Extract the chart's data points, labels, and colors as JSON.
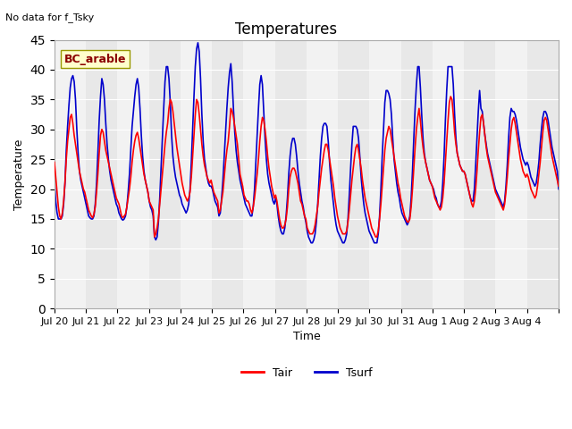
{
  "title": "Temperatures",
  "xlabel": "Time",
  "ylabel": "Temperature",
  "no_data_text": "No data for f_Tsky",
  "site_label": "BC_arable",
  "ylim": [
    0,
    45
  ],
  "yticks": [
    0,
    5,
    10,
    15,
    20,
    25,
    30,
    35,
    40,
    45
  ],
  "x_labels": [
    "Jul 20",
    "Jul 21",
    "Jul 22",
    "Jul 23",
    "Jul 24",
    "Jul 25",
    "Jul 26",
    "Jul 27",
    "Jul 28",
    "Jul 29",
    "Jul 30",
    "Jul 31",
    "Aug 1",
    "Aug 2",
    "Aug 3",
    "Aug 4"
  ],
  "bg_color": "#e8e8e8",
  "tair_color": "#ff0000",
  "tsurf_color": "#0000cc",
  "legend_labels": [
    "Tair",
    "Tsurf"
  ],
  "Tair": [
    24.5,
    22.0,
    19.5,
    17.0,
    15.5,
    15.0,
    16.0,
    18.0,
    21.0,
    25.0,
    28.0,
    30.0,
    32.0,
    32.5,
    31.0,
    29.0,
    27.5,
    26.0,
    24.5,
    23.0,
    22.0,
    21.0,
    20.0,
    19.5,
    18.5,
    17.5,
    16.5,
    16.0,
    15.5,
    15.2,
    15.8,
    17.0,
    19.5,
    22.5,
    26.0,
    29.0,
    30.0,
    29.5,
    28.0,
    26.5,
    25.5,
    24.5,
    23.5,
    22.5,
    21.5,
    20.5,
    19.5,
    18.5,
    18.0,
    17.5,
    16.5,
    15.5,
    15.2,
    15.5,
    15.8,
    17.0,
    18.5,
    20.0,
    22.0,
    24.5,
    26.5,
    28.0,
    29.0,
    29.5,
    28.5,
    27.0,
    25.5,
    24.0,
    22.5,
    21.5,
    20.5,
    19.5,
    18.0,
    17.5,
    17.0,
    16.5,
    12.0,
    12.5,
    13.5,
    15.0,
    17.5,
    20.0,
    22.5,
    25.0,
    27.5,
    29.5,
    31.0,
    33.5,
    35.0,
    34.5,
    33.0,
    31.0,
    29.0,
    27.0,
    25.5,
    24.0,
    22.5,
    21.0,
    20.0,
    19.0,
    18.5,
    18.0,
    18.5,
    19.5,
    22.0,
    25.5,
    29.0,
    32.5,
    35.0,
    34.5,
    32.5,
    30.0,
    27.5,
    25.5,
    24.0,
    23.0,
    22.0,
    21.5,
    21.0,
    21.5,
    20.5,
    19.5,
    19.0,
    18.5,
    18.0,
    16.0,
    16.5,
    18.0,
    19.5,
    22.0,
    24.5,
    26.5,
    28.0,
    30.5,
    33.5,
    33.0,
    32.0,
    30.5,
    29.0,
    27.5,
    25.0,
    22.5,
    21.5,
    20.5,
    19.0,
    18.5,
    18.0,
    18.0,
    17.5,
    16.5,
    16.0,
    17.0,
    18.5,
    20.5,
    22.5,
    25.0,
    28.0,
    30.5,
    32.0,
    31.5,
    30.0,
    28.0,
    25.5,
    23.5,
    22.0,
    20.5,
    19.5,
    18.5,
    19.0,
    18.0,
    16.5,
    15.0,
    14.0,
    13.5,
    13.5,
    14.0,
    15.0,
    17.0,
    20.0,
    22.0,
    23.0,
    23.5,
    23.5,
    23.0,
    22.0,
    21.0,
    19.5,
    18.0,
    17.5,
    16.5,
    15.5,
    15.0,
    13.5,
    13.0,
    12.5,
    12.5,
    12.5,
    13.0,
    14.0,
    15.5,
    17.0,
    19.5,
    21.5,
    23.5,
    25.0,
    26.5,
    27.5,
    27.5,
    26.5,
    25.0,
    23.5,
    22.0,
    20.5,
    18.5,
    17.0,
    15.5,
    14.5,
    13.5,
    13.0,
    12.5,
    12.5,
    12.5,
    13.0,
    14.5,
    16.5,
    19.0,
    21.5,
    23.5,
    25.5,
    27.0,
    27.5,
    26.5,
    25.0,
    23.5,
    21.5,
    20.0,
    18.5,
    17.5,
    16.5,
    15.5,
    14.5,
    13.5,
    13.0,
    12.5,
    12.0,
    12.0,
    13.0,
    15.0,
    17.5,
    20.5,
    23.5,
    26.5,
    28.5,
    29.5,
    30.5,
    30.0,
    28.5,
    27.0,
    25.5,
    24.0,
    22.5,
    21.0,
    20.0,
    18.5,
    17.5,
    16.5,
    15.5,
    15.0,
    14.5,
    14.5,
    15.0,
    17.0,
    20.0,
    23.5,
    27.0,
    30.0,
    32.0,
    33.5,
    31.5,
    29.0,
    27.0,
    25.5,
    24.5,
    23.5,
    22.5,
    21.5,
    21.0,
    20.5,
    19.5,
    18.5,
    18.0,
    17.5,
    17.0,
    16.5,
    17.0,
    18.5,
    21.0,
    24.5,
    28.0,
    31.5,
    34.5,
    35.5,
    35.0,
    32.5,
    29.5,
    27.5,
    26.0,
    25.0,
    24.0,
    23.5,
    23.0,
    23.0,
    22.5,
    21.5,
    20.5,
    19.5,
    18.5,
    17.5,
    17.0,
    18.0,
    20.0,
    23.0,
    26.5,
    29.5,
    32.0,
    32.5,
    31.0,
    29.0,
    27.0,
    25.5,
    24.5,
    23.5,
    22.5,
    21.5,
    20.5,
    19.5,
    19.0,
    18.5,
    18.0,
    17.5,
    17.0,
    16.5,
    17.5,
    19.5,
    22.0,
    25.0,
    27.5,
    30.0,
    31.5,
    32.0,
    31.0,
    29.5,
    28.0,
    26.5,
    25.0,
    24.0,
    23.0,
    22.5,
    22.0,
    22.5,
    22.0,
    21.0,
    20.0,
    19.5,
    19.0,
    18.5,
    19.0,
    20.5,
    22.5,
    24.5,
    27.0,
    29.5,
    31.5,
    32.0,
    31.5,
    30.0,
    28.5,
    27.0,
    25.5,
    24.5,
    23.5,
    22.5,
    21.5,
    20.5
  ],
  "Tsurf": [
    21.5,
    18.0,
    16.0,
    15.0,
    15.0,
    15.0,
    15.5,
    17.5,
    21.0,
    26.5,
    30.5,
    34.0,
    37.0,
    38.5,
    39.0,
    38.0,
    35.0,
    30.0,
    26.0,
    23.0,
    21.5,
    20.5,
    19.5,
    18.5,
    17.5,
    16.5,
    15.5,
    15.2,
    15.0,
    15.0,
    15.5,
    17.5,
    21.0,
    26.0,
    31.5,
    35.5,
    38.5,
    37.5,
    35.0,
    31.0,
    27.5,
    25.0,
    23.0,
    21.5,
    20.5,
    19.5,
    18.5,
    17.5,
    17.0,
    16.0,
    15.5,
    15.0,
    14.8,
    15.0,
    15.5,
    17.0,
    19.5,
    22.5,
    26.5,
    30.5,
    33.0,
    35.5,
    37.5,
    38.5,
    37.0,
    33.5,
    29.0,
    25.5,
    23.0,
    21.5,
    20.5,
    19.5,
    18.0,
    17.0,
    16.5,
    15.5,
    12.0,
    11.5,
    12.0,
    14.5,
    18.5,
    23.5,
    28.5,
    33.5,
    38.0,
    40.5,
    40.5,
    38.5,
    34.5,
    29.0,
    25.5,
    23.5,
    22.0,
    21.0,
    20.0,
    19.0,
    18.5,
    17.5,
    17.0,
    16.5,
    16.0,
    16.5,
    17.5,
    20.0,
    24.5,
    30.0,
    35.5,
    40.5,
    43.5,
    44.5,
    43.0,
    38.5,
    32.5,
    28.0,
    25.0,
    23.5,
    22.0,
    21.0,
    20.5,
    20.5,
    20.0,
    19.0,
    18.0,
    17.5,
    17.0,
    15.5,
    16.0,
    18.5,
    21.5,
    25.5,
    29.5,
    33.5,
    37.0,
    39.5,
    41.0,
    38.0,
    33.5,
    29.5,
    26.5,
    24.5,
    23.0,
    21.5,
    20.5,
    19.5,
    18.5,
    17.5,
    17.0,
    16.5,
    16.0,
    15.5,
    15.5,
    17.0,
    20.0,
    24.5,
    29.0,
    33.5,
    37.5,
    39.0,
    37.5,
    33.0,
    28.5,
    25.0,
    22.5,
    21.0,
    20.0,
    19.0,
    18.0,
    17.5,
    18.5,
    17.5,
    15.5,
    14.0,
    13.0,
    12.5,
    12.5,
    13.5,
    15.5,
    18.5,
    22.5,
    25.5,
    27.5,
    28.5,
    28.5,
    27.5,
    25.5,
    23.0,
    21.0,
    19.5,
    18.0,
    17.0,
    15.5,
    14.5,
    13.0,
    12.0,
    11.5,
    11.0,
    11.0,
    11.5,
    12.5,
    14.5,
    17.5,
    21.5,
    25.5,
    28.5,
    30.5,
    31.0,
    31.0,
    30.5,
    28.0,
    24.5,
    21.5,
    19.5,
    17.5,
    15.5,
    14.0,
    13.0,
    12.5,
    12.0,
    11.5,
    11.0,
    11.0,
    11.5,
    12.5,
    15.0,
    19.0,
    23.5,
    27.5,
    30.5,
    30.5,
    30.5,
    30.0,
    28.5,
    25.5,
    22.0,
    19.5,
    17.5,
    16.0,
    15.0,
    14.0,
    13.0,
    12.5,
    12.0,
    11.5,
    11.0,
    11.0,
    11.0,
    12.5,
    15.5,
    20.0,
    25.5,
    30.0,
    34.5,
    36.5,
    36.5,
    36.0,
    35.0,
    32.5,
    28.5,
    25.0,
    23.0,
    21.0,
    19.5,
    18.5,
    17.0,
    16.0,
    15.5,
    15.0,
    14.5,
    14.0,
    14.5,
    15.5,
    18.5,
    23.0,
    28.5,
    33.5,
    37.5,
    40.5,
    40.5,
    37.0,
    32.5,
    28.5,
    26.0,
    24.5,
    23.5,
    22.5,
    21.5,
    21.0,
    20.5,
    20.0,
    19.0,
    18.5,
    17.5,
    17.0,
    17.0,
    18.0,
    21.0,
    25.5,
    31.5,
    36.5,
    40.5,
    40.5,
    40.5,
    40.5,
    37.5,
    32.5,
    28.5,
    26.0,
    25.0,
    24.0,
    23.5,
    23.0,
    23.0,
    22.5,
    21.5,
    20.5,
    19.5,
    18.5,
    18.0,
    18.0,
    20.0,
    24.0,
    28.5,
    33.0,
    36.5,
    33.5,
    33.0,
    31.0,
    29.0,
    27.5,
    26.0,
    25.0,
    24.0,
    23.0,
    22.0,
    21.0,
    20.0,
    19.5,
    19.0,
    18.5,
    18.0,
    17.5,
    17.0,
    18.0,
    20.5,
    24.0,
    28.5,
    32.0,
    33.5,
    33.0,
    33.0,
    32.5,
    31.5,
    30.0,
    28.5,
    27.0,
    26.0,
    25.0,
    24.5,
    24.0,
    24.5,
    24.0,
    23.0,
    22.0,
    21.5,
    21.0,
    20.5,
    21.0,
    22.5,
    24.5,
    27.5,
    30.0,
    32.0,
    33.0,
    33.0,
    32.5,
    31.5,
    30.0,
    28.5,
    27.0,
    26.0,
    25.0,
    24.0,
    23.0,
    20.0
  ]
}
